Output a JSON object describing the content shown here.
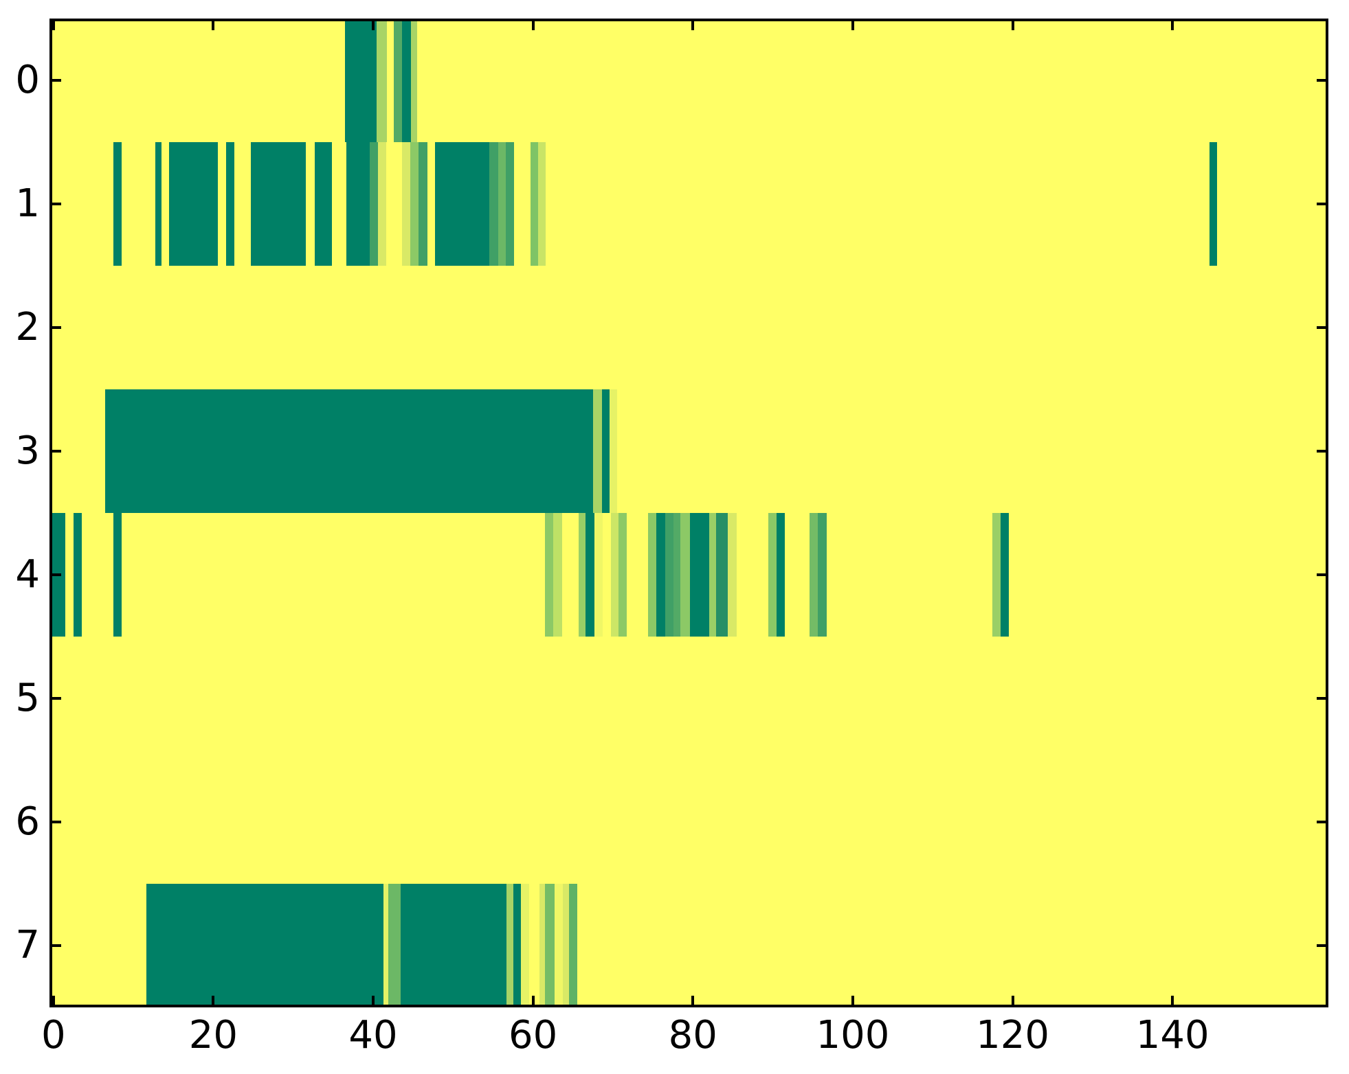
{
  "figure": {
    "background": "#ffffff",
    "plot_background": "#ffff66",
    "spine_color": "#000000",
    "tick_color": "#000000",
    "label_color": "#000000"
  },
  "chart_data": {
    "type": "heatmap",
    "title": "",
    "xlabel": "",
    "ylabel": "",
    "colormap": "summer (dark teal-green = low, yellow = high)",
    "n_rows": 8,
    "n_cols": 160,
    "x_range": [
      -0.5,
      159.5
    ],
    "y_range": [
      -0.5,
      7.5
    ],
    "x_ticks": [
      "0",
      "20",
      "40",
      "60",
      "80",
      "100",
      "120",
      "140"
    ],
    "x_tick_values": [
      0,
      20,
      40,
      60,
      80,
      100,
      120,
      140
    ],
    "y_ticks": [
      "0",
      "1",
      "2",
      "3",
      "4",
      "5",
      "6",
      "7"
    ],
    "y_tick_values": [
      0,
      1,
      2,
      3,
      4,
      5,
      6,
      7
    ],
    "grid": false,
    "legend": "none",
    "background_color_key": "bg",
    "palette": {
      "bg": "#ffff66",
      "g0": "#008066",
      "g15": "#268f66",
      "g25": "#40a066",
      "g33": "#53aa66",
      "g40": "#5fb266",
      "g43": "#6cb866",
      "g46": "#74bc66",
      "g50": "#7fc466",
      "g55": "#8cc966",
      "g60": "#9acf66",
      "g66": "#a8d466",
      "g70": "#bee166",
      "g75": "#c9e466",
      "g80": "#cce666",
      "g85": "#d9e966",
      "g90": "#e6f266",
      "g95": "#f0f766"
    },
    "rows": [
      {
        "y": 0,
        "segments": [
          {
            "s": 36.5,
            "e": 40.4,
            "c": "g0"
          },
          {
            "s": 40.4,
            "e": 41.7,
            "c": "g66"
          },
          {
            "s": 42.6,
            "e": 43.6,
            "c": "g33"
          },
          {
            "s": 43.6,
            "e": 44.7,
            "c": "g0"
          },
          {
            "s": 44.7,
            "e": 45.5,
            "c": "g66"
          }
        ]
      },
      {
        "y": 1,
        "segments": [
          {
            "s": 7.5,
            "e": 8.5,
            "c": "g0"
          },
          {
            "s": 12.7,
            "e": 13.5,
            "c": "g0"
          },
          {
            "s": 14.5,
            "e": 20.6,
            "c": "g0"
          },
          {
            "s": 21.6,
            "e": 22.6,
            "c": "g0"
          },
          {
            "s": 24.7,
            "e": 31.6,
            "c": "g0"
          },
          {
            "s": 32.7,
            "e": 34.8,
            "c": "g0"
          },
          {
            "s": 36.6,
            "e": 39.6,
            "c": "g0"
          },
          {
            "s": 39.6,
            "e": 40.6,
            "c": "g25"
          },
          {
            "s": 40.6,
            "e": 41.6,
            "c": "g85"
          },
          {
            "s": 43.6,
            "e": 44.6,
            "c": "g85"
          },
          {
            "s": 44.6,
            "e": 45.7,
            "c": "g55"
          },
          {
            "s": 45.7,
            "e": 46.8,
            "c": "g25"
          },
          {
            "s": 47.7,
            "e": 54.5,
            "c": "g0"
          },
          {
            "s": 54.5,
            "e": 55.6,
            "c": "g25"
          },
          {
            "s": 55.6,
            "e": 56.6,
            "c": "g43"
          },
          {
            "s": 56.6,
            "e": 57.6,
            "c": "g25"
          },
          {
            "s": 59.7,
            "e": 60.6,
            "c": "g50"
          },
          {
            "s": 60.6,
            "e": 61.6,
            "c": "g75"
          },
          {
            "s": 144.6,
            "e": 145.6,
            "c": "g0"
          }
        ]
      },
      {
        "y": 2,
        "segments": []
      },
      {
        "y": 3,
        "segments": [
          {
            "s": 6.5,
            "e": 67.5,
            "c": "g0"
          },
          {
            "s": 67.5,
            "e": 68.6,
            "c": "g66"
          },
          {
            "s": 68.6,
            "e": 69.6,
            "c": "g0"
          },
          {
            "s": 69.6,
            "e": 70.5,
            "c": "g90"
          }
        ]
      },
      {
        "y": 4,
        "segments": [
          {
            "s": -0.5,
            "e": 1.5,
            "c": "g0"
          },
          {
            "s": 2.5,
            "e": 3.5,
            "c": "g0"
          },
          {
            "s": 7.5,
            "e": 8.5,
            "c": "g0"
          },
          {
            "s": 61.5,
            "e": 62.5,
            "c": "g55"
          },
          {
            "s": 62.5,
            "e": 63.6,
            "c": "g70"
          },
          {
            "s": 65.7,
            "e": 66.6,
            "c": "g60"
          },
          {
            "s": 66.6,
            "e": 67.7,
            "c": "g0"
          },
          {
            "s": 67.7,
            "e": 68.7,
            "c": "g95"
          },
          {
            "s": 69.7,
            "e": 70.7,
            "c": "g80"
          },
          {
            "s": 70.7,
            "e": 71.7,
            "c": "g55"
          },
          {
            "s": 74.4,
            "e": 75.4,
            "c": "g55"
          },
          {
            "s": 75.4,
            "e": 76.5,
            "c": "g0"
          },
          {
            "s": 76.5,
            "e": 77.6,
            "c": "g25"
          },
          {
            "s": 77.6,
            "e": 78.4,
            "c": "g33"
          },
          {
            "s": 78.4,
            "e": 79.6,
            "c": "g55"
          },
          {
            "s": 79.6,
            "e": 82.0,
            "c": "g0"
          },
          {
            "s": 82.0,
            "e": 82.9,
            "c": "g60"
          },
          {
            "s": 82.9,
            "e": 84.4,
            "c": "g15"
          },
          {
            "s": 84.4,
            "e": 85.5,
            "c": "g85"
          },
          {
            "s": 89.4,
            "e": 90.5,
            "c": "g55"
          },
          {
            "s": 90.5,
            "e": 91.5,
            "c": "g0"
          },
          {
            "s": 94.6,
            "e": 95.6,
            "c": "g46"
          },
          {
            "s": 95.6,
            "e": 96.7,
            "c": "g25"
          },
          {
            "s": 117.5,
            "e": 118.5,
            "c": "g60"
          },
          {
            "s": 118.5,
            "e": 119.5,
            "c": "g0"
          }
        ]
      },
      {
        "y": 5,
        "segments": []
      },
      {
        "y": 6,
        "segments": []
      },
      {
        "y": 7,
        "segments": [
          {
            "s": 11.6,
            "e": 41.3,
            "c": "g0"
          },
          {
            "s": 41.3,
            "e": 41.9,
            "c": "g90"
          },
          {
            "s": 41.9,
            "e": 43.4,
            "c": "g43"
          },
          {
            "s": 43.4,
            "e": 56.7,
            "c": "g0"
          },
          {
            "s": 56.7,
            "e": 57.5,
            "c": "g66"
          },
          {
            "s": 57.5,
            "e": 58.5,
            "c": "g0"
          },
          {
            "s": 58.5,
            "e": 59.5,
            "c": "g90"
          },
          {
            "s": 60.8,
            "e": 61.5,
            "c": "g85"
          },
          {
            "s": 61.5,
            "e": 62.7,
            "c": "g46"
          },
          {
            "s": 62.7,
            "e": 63.7,
            "c": "g95"
          },
          {
            "s": 63.7,
            "e": 64.5,
            "c": "g85"
          },
          {
            "s": 64.5,
            "e": 65.5,
            "c": "g40"
          }
        ]
      }
    ]
  }
}
